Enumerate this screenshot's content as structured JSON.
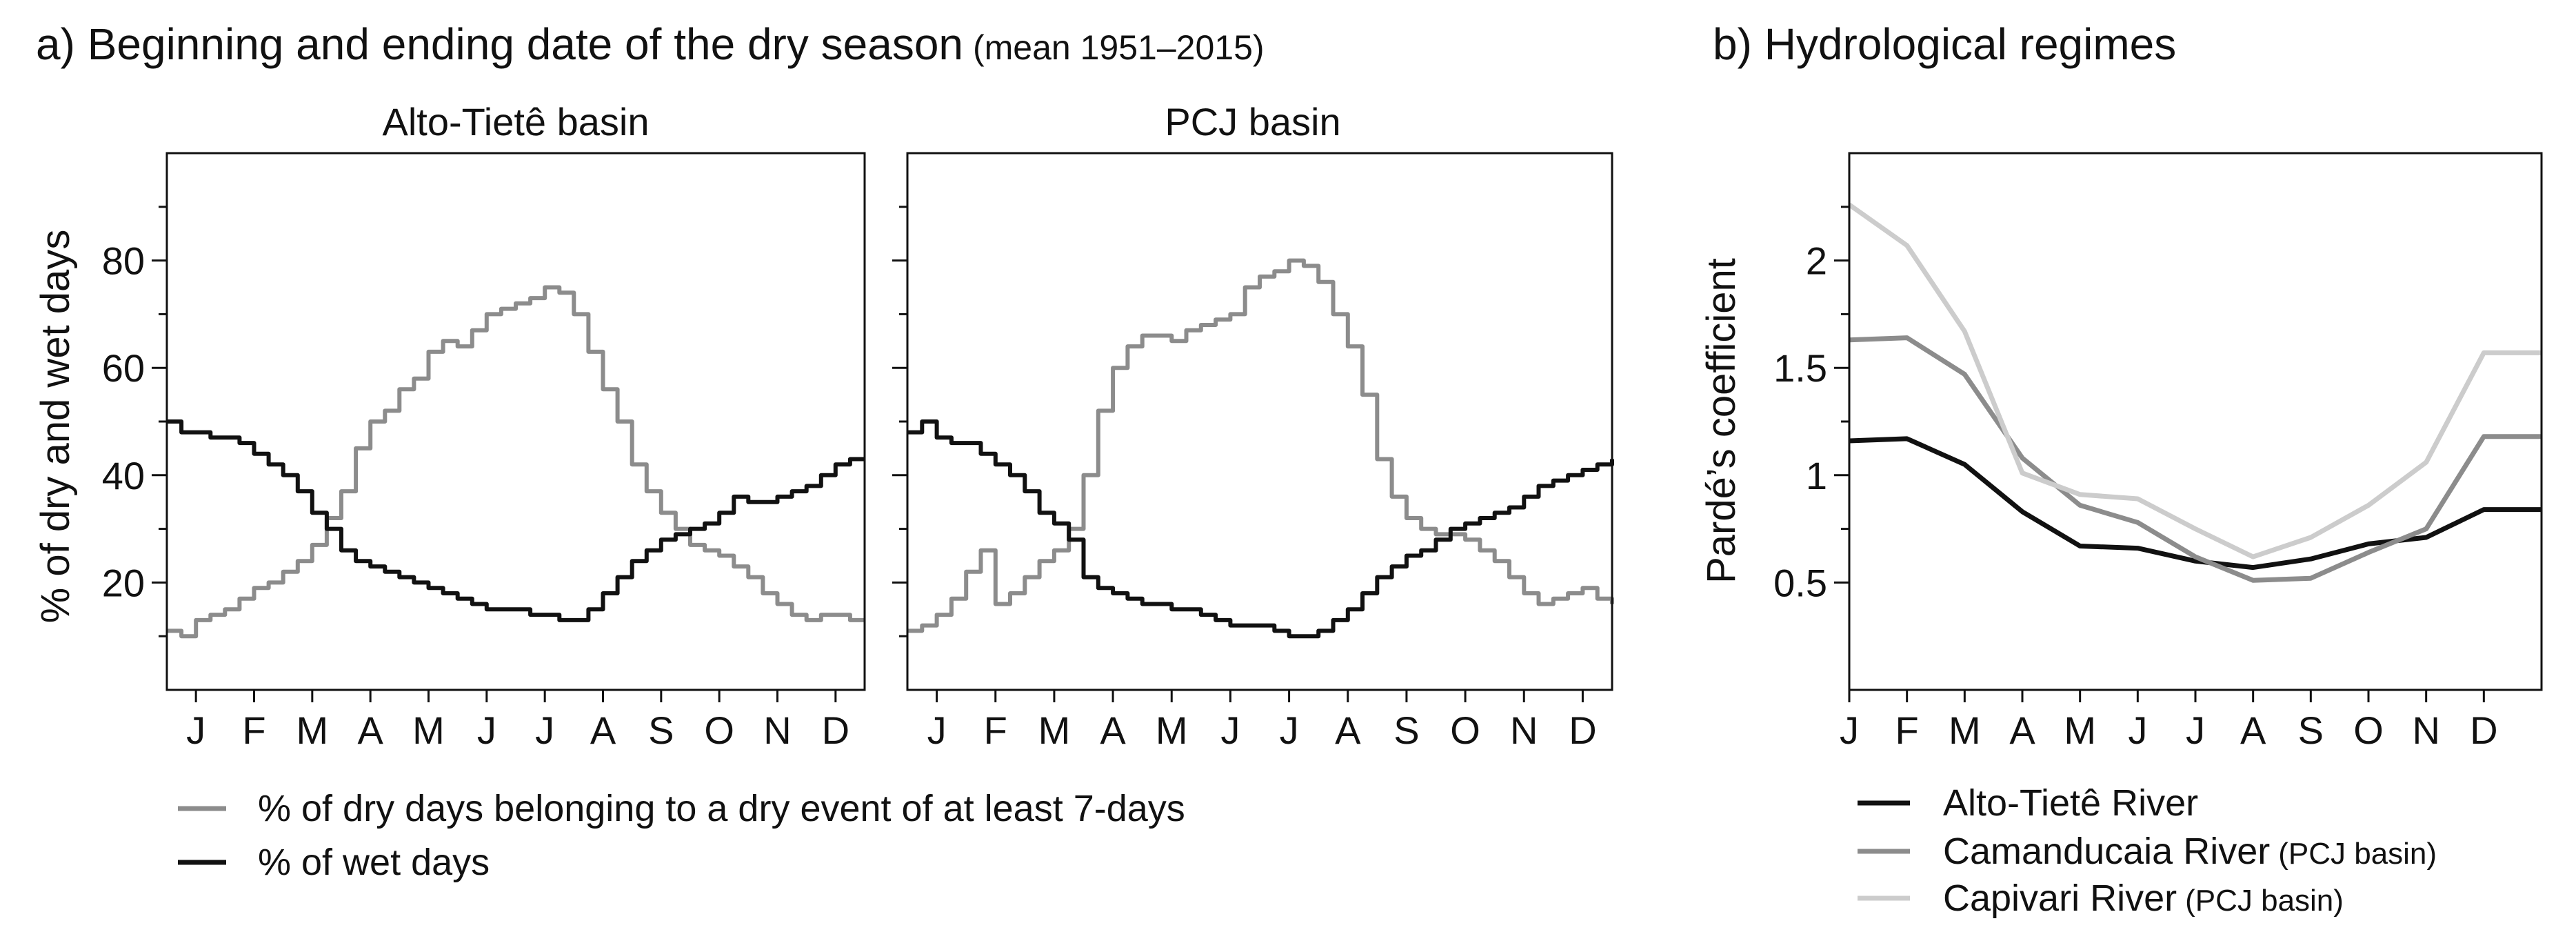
{
  "panel_a": {
    "title": "a) Beginning and ending date of the dry season",
    "title_note": "(mean 1951–2015)",
    "ylabel": "% of dry and wet days",
    "legend": [
      {
        "label": "% of dry days belonging to a dry event of at least 7-days",
        "color": "#8c8c8c"
      },
      {
        "label": "% of wet days",
        "color": "#111111"
      }
    ]
  },
  "panel_b": {
    "title": "b) Hydrological regimes"
  },
  "chart_data": [
    {
      "type": "line",
      "title": "Alto-Tietê basin",
      "xlabel": "",
      "ylabel": "% of dry and wet days",
      "xlim": [
        0,
        12
      ],
      "ylim": [
        0,
        100
      ],
      "yticks": [
        20,
        40,
        60,
        80
      ],
      "x_tick_labels": [
        "J",
        "F",
        "M",
        "A",
        "M",
        "J",
        "J",
        "A",
        "S",
        "O",
        "N",
        "D"
      ],
      "series": [
        {
          "name": "% of dry days belonging to a dry event of at least 7-days",
          "color": "#8c8c8c",
          "x": [
            0,
            0.25,
            0.5,
            0.75,
            1,
            1.25,
            1.5,
            1.75,
            2,
            2.25,
            2.5,
            2.75,
            3,
            3.25,
            3.5,
            3.75,
            4,
            4.25,
            4.5,
            4.75,
            5,
            5.25,
            5.5,
            5.75,
            6,
            6.25,
            6.5,
            6.75,
            7,
            7.25,
            7.5,
            7.75,
            8,
            8.25,
            8.5,
            8.75,
            9,
            9.25,
            9.5,
            9.75,
            10,
            10.25,
            10.5,
            10.75,
            11,
            11.25,
            11.5,
            11.75,
            12
          ],
          "y": [
            11,
            10,
            13,
            14,
            15,
            17,
            19,
            20,
            22,
            24,
            27,
            32,
            37,
            45,
            50,
            52,
            56,
            58,
            63,
            65,
            64,
            67,
            70,
            71,
            72,
            73,
            75,
            74,
            70,
            63,
            56,
            50,
            42,
            37,
            33,
            30,
            27,
            26,
            25,
            23,
            21,
            18,
            16,
            14,
            13,
            14,
            14,
            13,
            13
          ]
        },
        {
          "name": "% of wet days",
          "color": "#111111",
          "x": [
            0,
            0.25,
            0.5,
            0.75,
            1,
            1.25,
            1.5,
            1.75,
            2,
            2.25,
            2.5,
            2.75,
            3,
            3.25,
            3.5,
            3.75,
            4,
            4.25,
            4.5,
            4.75,
            5,
            5.25,
            5.5,
            5.75,
            6,
            6.25,
            6.5,
            6.75,
            7,
            7.25,
            7.5,
            7.75,
            8,
            8.25,
            8.5,
            8.75,
            9,
            9.25,
            9.5,
            9.75,
            10,
            10.25,
            10.5,
            10.75,
            11,
            11.25,
            11.5,
            11.75,
            12
          ],
          "y": [
            50,
            48,
            48,
            47,
            47,
            46,
            44,
            42,
            40,
            37,
            33,
            30,
            26,
            24,
            23,
            22,
            21,
            20,
            19,
            18,
            17,
            16,
            15,
            15,
            15,
            14,
            14,
            13,
            13,
            15,
            18,
            21,
            24,
            26,
            28,
            29,
            30,
            31,
            33,
            36,
            35,
            35,
            36,
            37,
            38,
            40,
            42,
            43,
            43
          ]
        }
      ]
    },
    {
      "type": "line",
      "title": "PCJ basin",
      "xlabel": "",
      "ylabel": "",
      "xlim": [
        0,
        12
      ],
      "ylim": [
        0,
        100
      ],
      "yticks": [
        20,
        40,
        60,
        80
      ],
      "x_tick_labels": [
        "J",
        "F",
        "M",
        "A",
        "M",
        "J",
        "J",
        "A",
        "S",
        "O",
        "N",
        "D"
      ],
      "series": [
        {
          "name": "% of dry days belonging to a dry event of at least 7-days",
          "color": "#8c8c8c",
          "x": [
            0,
            0.25,
            0.5,
            0.75,
            1,
            1.25,
            1.5,
            1.75,
            2,
            2.25,
            2.5,
            2.75,
            3,
            3.25,
            3.5,
            3.75,
            4,
            4.25,
            4.5,
            4.75,
            5,
            5.25,
            5.5,
            5.75,
            6,
            6.25,
            6.5,
            6.75,
            7,
            7.25,
            7.5,
            7.75,
            8,
            8.25,
            8.5,
            8.75,
            9,
            9.25,
            9.5,
            9.75,
            10,
            10.25,
            10.5,
            10.75,
            11,
            11.25,
            11.5,
            11.75,
            12
          ],
          "y": [
            11,
            12,
            14,
            17,
            22,
            26,
            16,
            18,
            21,
            24,
            26,
            30,
            40,
            52,
            60,
            64,
            66,
            66,
            65,
            67,
            68,
            69,
            70,
            75,
            77,
            78,
            80,
            79,
            76,
            70,
            64,
            55,
            43,
            36,
            32,
            30,
            29,
            29,
            28,
            26,
            24,
            21,
            18,
            16,
            17,
            18,
            19,
            17,
            16
          ]
        },
        {
          "name": "% of wet days",
          "color": "#111111",
          "x": [
            0,
            0.25,
            0.5,
            0.75,
            1,
            1.25,
            1.5,
            1.75,
            2,
            2.25,
            2.5,
            2.75,
            3,
            3.25,
            3.5,
            3.75,
            4,
            4.25,
            4.5,
            4.75,
            5,
            5.25,
            5.5,
            5.75,
            6,
            6.25,
            6.5,
            6.75,
            7,
            7.25,
            7.5,
            7.75,
            8,
            8.25,
            8.5,
            8.75,
            9,
            9.25,
            9.5,
            9.75,
            10,
            10.25,
            10.5,
            10.75,
            11,
            11.25,
            11.5,
            11.75,
            12
          ],
          "y": [
            48,
            50,
            47,
            46,
            46,
            44,
            42,
            40,
            37,
            33,
            31,
            28,
            21,
            19,
            18,
            17,
            16,
            16,
            15,
            15,
            14,
            13,
            12,
            12,
            12,
            11,
            10,
            10,
            11,
            13,
            15,
            18,
            21,
            23,
            25,
            26,
            28,
            30,
            31,
            32,
            33,
            34,
            36,
            38,
            39,
            40,
            41,
            42,
            43
          ]
        }
      ]
    },
    {
      "type": "line",
      "title": "b) Hydrological regimes",
      "xlabel": "",
      "ylabel": "Pardé’s coefficient",
      "xlim": [
        0,
        12
      ],
      "ylim": [
        0,
        2.5
      ],
      "yticks": [
        0.5,
        1,
        1.5,
        2
      ],
      "ytick_labels": [
        "0.5",
        "1",
        "1.5",
        "2"
      ],
      "x_tick_labels": [
        "J",
        "F",
        "M",
        "A",
        "M",
        "J",
        "J",
        "A",
        "S",
        "O",
        "N",
        "D"
      ],
      "series": [
        {
          "name": "Alto-Tietê River",
          "note": "",
          "color": "#111111",
          "x": [
            0,
            1,
            2,
            3,
            4,
            5,
            6,
            7,
            8,
            9,
            10,
            11,
            12
          ],
          "y": [
            1.16,
            1.17,
            1.05,
            0.83,
            0.67,
            0.66,
            0.6,
            0.57,
            0.61,
            0.68,
            0.71,
            0.84,
            0.84
          ]
        },
        {
          "name": "Camanducaia River",
          "note": "(PCJ basin)",
          "color": "#8c8c8c",
          "x": [
            0,
            1,
            2,
            3,
            4,
            5,
            6,
            7,
            8,
            9,
            10,
            11,
            12
          ],
          "y": [
            1.63,
            1.64,
            1.47,
            1.08,
            0.86,
            0.78,
            0.62,
            0.51,
            0.52,
            0.64,
            0.75,
            1.18,
            1.18
          ]
        },
        {
          "name": "Capivari River",
          "note": "(PCJ basin)",
          "color": "#cccccc",
          "x": [
            0,
            1,
            2,
            3,
            4,
            5,
            6,
            7,
            8,
            9,
            10,
            11,
            12
          ],
          "y": [
            2.26,
            2.07,
            1.67,
            1.01,
            0.91,
            0.89,
            0.75,
            0.62,
            0.71,
            0.86,
            1.06,
            1.57,
            1.57
          ]
        }
      ]
    }
  ]
}
